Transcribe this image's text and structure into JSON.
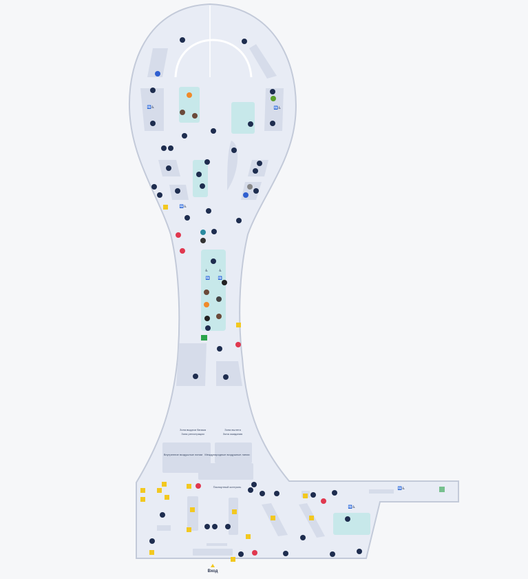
{
  "map": {
    "entrance_label": "Вход",
    "labels": [
      "Зона выдачи багажа",
      "Зона регистрации",
      "Зона вылета",
      "Зона ожидания",
      "Внутренние воздушные линии",
      "Международные воздушные линии",
      "Паспортный контроль"
    ]
  },
  "colors": {
    "background": "#f6f7f9",
    "floor": "#e8ecf5",
    "outline": "#c3cad9",
    "shop": "#d6dcea",
    "lounge": "#c7e8ea",
    "poi_dark": "#1e2d4f",
    "poi_yellow": "#f2c820",
    "poi_red": "#e0384f",
    "poi_green": "#2aa44a",
    "poi_orange": "#f08a2a",
    "poi_blue": "#2f5fd0"
  }
}
